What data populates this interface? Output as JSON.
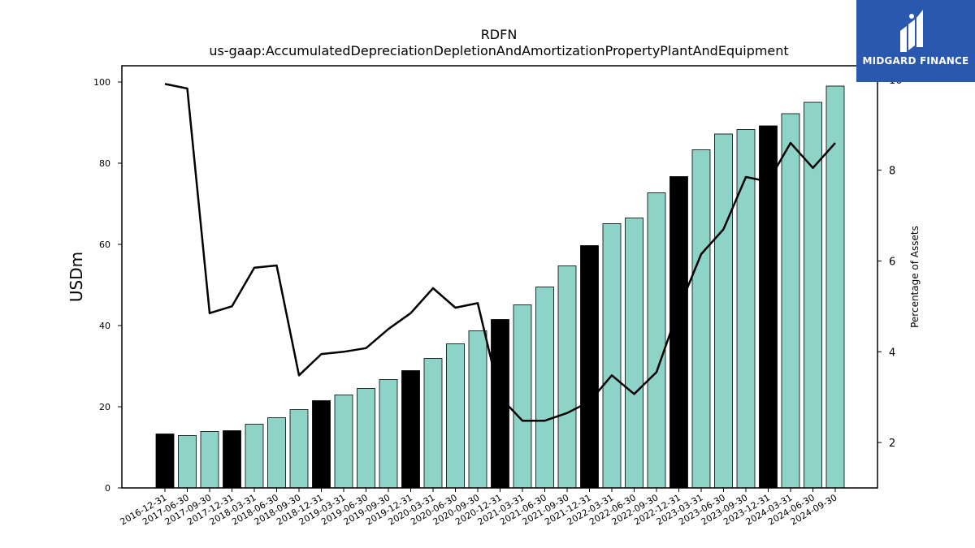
{
  "chart_data": {
    "type": "bar",
    "title": "RDFN",
    "subtitle": "us-gaap:AccumulatedDepreciationDepletionAndAmortizationPropertyPlantAndEquipment",
    "ylabel": "USDm",
    "y2label": "Percentage of Assets",
    "ylim": [
      0,
      104
    ],
    "y2lim": [
      1.0,
      10.3
    ],
    "yticks": [
      0,
      20,
      40,
      60,
      80,
      100
    ],
    "y2ticks": [
      2,
      4,
      6,
      8,
      10
    ],
    "categories": [
      "2016-12-31",
      "2017-06-30",
      "2017-09-30",
      "2017-12-31",
      "2018-03-31",
      "2018-06-30",
      "2018-09-30",
      "2018-12-31",
      "2019-03-31",
      "2019-06-30",
      "2019-09-30",
      "2019-12-31",
      "2020-03-31",
      "2020-06-30",
      "2020-09-30",
      "2020-12-31",
      "2021-03-31",
      "2021-06-30",
      "2021-09-30",
      "2021-12-31",
      "2022-03-31",
      "2022-06-30",
      "2022-09-30",
      "2022-12-31",
      "2023-03-31",
      "2023-06-30",
      "2023-09-30",
      "2023-12-31",
      "2024-03-31",
      "2024-06-30",
      "2024-09-30"
    ],
    "series": [
      {
        "type": "bar",
        "values": [
          13.3,
          12.9,
          13.9,
          14.1,
          15.7,
          17.3,
          19.3,
          21.5,
          22.9,
          24.5,
          26.7,
          28.9,
          31.9,
          35.5,
          38.7,
          41.5,
          45.1,
          49.5,
          54.7,
          59.7,
          65.1,
          66.5,
          72.7,
          76.7,
          83.3,
          87.2,
          88.3,
          89.2,
          92.2,
          95.0,
          99.0
        ],
        "annual_flags": [
          true,
          false,
          false,
          true,
          false,
          false,
          false,
          true,
          false,
          false,
          false,
          true,
          false,
          false,
          false,
          true,
          false,
          false,
          false,
          true,
          false,
          false,
          false,
          true,
          false,
          false,
          false,
          true,
          false,
          false,
          false
        ]
      },
      {
        "type": "line",
        "axis": "right",
        "values": [
          9.9,
          9.8,
          4.85,
          5.0,
          5.85,
          5.9,
          3.48,
          3.95,
          4.0,
          4.08,
          4.5,
          4.85,
          5.4,
          4.97,
          5.07,
          3.0,
          2.48,
          2.48,
          2.65,
          2.9,
          3.48,
          3.07,
          3.55,
          4.95,
          6.15,
          6.7,
          7.85,
          7.75,
          8.6,
          8.05,
          8.6
        ]
      }
    ],
    "colors": {
      "bar_regular": "#8dd3c7",
      "bar_annual": "#000000",
      "line": "#000000"
    }
  },
  "logo": {
    "brand_text": "MIDGARD FINANCE",
    "icon": "midgard-logo-icon"
  }
}
